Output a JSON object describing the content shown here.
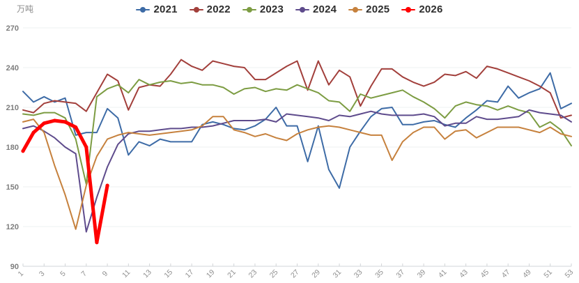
{
  "chart_data": {
    "type": "line",
    "title": "",
    "xlabel": "",
    "ylabel": "万吨",
    "x_unit": "week of year",
    "x_range": [
      1,
      53
    ],
    "x_tick_labels": [
      1,
      3,
      5,
      7,
      9,
      11,
      13,
      15,
      17,
      19,
      21,
      23,
      25,
      27,
      29,
      31,
      33,
      35,
      37,
      39,
      41,
      43,
      45,
      47,
      49,
      51,
      53
    ],
    "ylim": [
      90,
      270
    ],
    "y_ticks": [
      270,
      240,
      210,
      180,
      150,
      120,
      90
    ],
    "grid": "horizontal",
    "legend_position": "top-center",
    "series": [
      {
        "name": "2021",
        "color": "#3d6ba6",
        "line_width": 2,
        "values": [
          222,
          214,
          218,
          214,
          217,
          189,
          191,
          191,
          209,
          202,
          174,
          184,
          181,
          186,
          184,
          184,
          184,
          197,
          199,
          197,
          194,
          193,
          196,
          201,
          210,
          196,
          196,
          169,
          196,
          163,
          149,
          180,
          192,
          203,
          209,
          210,
          197,
          197,
          199,
          200,
          197,
          195,
          202,
          208,
          215,
          214,
          226,
          217,
          221,
          224,
          236,
          209,
          213
        ]
      },
      {
        "name": "2022",
        "color": "#a23f3b",
        "line_width": 2,
        "values": [
          208,
          206,
          213,
          215,
          214,
          213,
          207,
          221,
          235,
          230,
          208,
          225,
          227,
          226,
          235,
          246,
          241,
          238,
          245,
          243,
          241,
          240,
          231,
          231,
          236,
          241,
          245,
          223,
          245,
          227,
          238,
          233,
          211,
          226,
          239,
          239,
          233,
          229,
          226,
          229,
          235,
          234,
          237,
          232,
          241,
          239,
          236,
          233,
          230,
          226,
          221,
          202,
          204
        ]
      },
      {
        "name": "2023",
        "color": "#7c9c42",
        "line_width": 2,
        "values": [
          205,
          204,
          206,
          206,
          202,
          186,
          152,
          218,
          224,
          227,
          221,
          231,
          227,
          229,
          230,
          228,
          229,
          227,
          227,
          225,
          220,
          224,
          225,
          222,
          224,
          223,
          227,
          224,
          221,
          215,
          214,
          207,
          220,
          217,
          219,
          221,
          223,
          218,
          214,
          209,
          202,
          211,
          214,
          212,
          211,
          208,
          211,
          208,
          206,
          195,
          199,
          193,
          181
        ]
      },
      {
        "name": "2024",
        "color": "#5e4b8c",
        "line_width": 2,
        "values": [
          194,
          196,
          192,
          187,
          180,
          175,
          116,
          142,
          165,
          182,
          190,
          192,
          192,
          193,
          194,
          194,
          195,
          195,
          196,
          198,
          200,
          200,
          200,
          201,
          199,
          205,
          204,
          203,
          202,
          200,
          204,
          203,
          205,
          207,
          205,
          204,
          204,
          204,
          205,
          203,
          196,
          198,
          198,
          203,
          201,
          201,
          202,
          203,
          208,
          206,
          205,
          204,
          199
        ]
      },
      {
        "name": "2025",
        "color": "#c6813d",
        "line_width": 2,
        "values": [
          199,
          201,
          191,
          166,
          144,
          118,
          151,
          173,
          186,
          189,
          191,
          190,
          189,
          190,
          191,
          192,
          193,
          196,
          203,
          203,
          193,
          191,
          188,
          190,
          187,
          185,
          190,
          193,
          195,
          196,
          195,
          193,
          191,
          189,
          189,
          170,
          184,
          191,
          195,
          195,
          186,
          192,
          193,
          187,
          191,
          195,
          195,
          195,
          193,
          191,
          195,
          190,
          188
        ]
      },
      {
        "name": "2026",
        "color": "#ff0000",
        "line_width": 5,
        "markers": true,
        "values": [
          177,
          191,
          198,
          200,
          199,
          195,
          180,
          108,
          151
        ]
      }
    ]
  },
  "axis_style": {
    "grid_color": "#eef0f2",
    "axis_line_color": "#d2d5d8",
    "y_label_color": "#7d7d7d",
    "x_label_color": "#8f8f8f"
  }
}
